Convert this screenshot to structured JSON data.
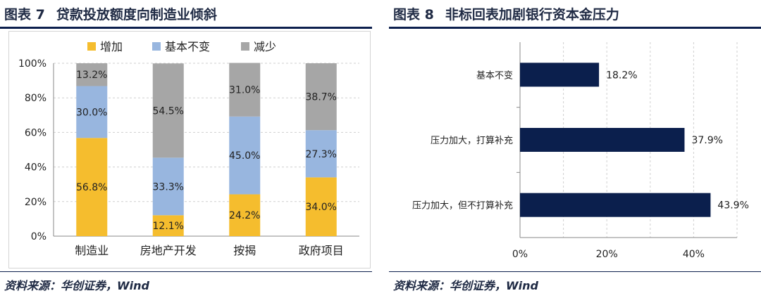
{
  "chart7": {
    "label": "图表 7",
    "title": "贷款投放额度向制造业倾斜",
    "source": "资料来源：华创证券，Wind",
    "colors": {
      "增加": "#f5bd2e",
      "基本不变": "#98b6df",
      "减少": "#a6a6a6"
    }
  },
  "chart8": {
    "label": "图表 8",
    "title": "非标回表加剧银行资本金压力",
    "source": "资料来源：华创证券，Wind",
    "color": "#0b1f4d"
  },
  "chart_data": [
    {
      "type": "bar",
      "stacked": true,
      "title": "贷款投放额度向制造业倾斜",
      "categories": [
        "制造业",
        "房地产开发",
        "按揭",
        "政府项目"
      ],
      "series": [
        {
          "name": "增加",
          "values": [
            56.8,
            12.1,
            24.2,
            34.0
          ],
          "labels": [
            "56.8%",
            "12.1%",
            "24.2%",
            "34.0%"
          ]
        },
        {
          "name": "基本不变",
          "values": [
            30.0,
            33.3,
            45.0,
            27.3
          ],
          "labels": [
            "30.0%",
            "33.3%",
            "45.0%",
            "27.3%"
          ]
        },
        {
          "name": "减少",
          "values": [
            13.2,
            54.5,
            31.0,
            38.7
          ],
          "labels": [
            "13.2%",
            "54.5%",
            "31.0%",
            "38.7%"
          ]
        }
      ],
      "ylim": [
        0,
        100
      ],
      "yticks": [
        "0%",
        "20%",
        "40%",
        "60%",
        "80%",
        "100%"
      ],
      "legend": "top",
      "grid": true
    },
    {
      "type": "bar",
      "orientation": "horizontal",
      "title": "非标回表加剧银行资本金压力",
      "categories": [
        "基本不变",
        "压力加大，打算补充",
        "压力加大，但不打算补充"
      ],
      "values": [
        18.2,
        37.9,
        43.9
      ],
      "labels": [
        "18.2%",
        "37.9%",
        "43.9%"
      ],
      "xlim": [
        0,
        50
      ],
      "xticks": [
        "0%",
        "20%",
        "40%"
      ],
      "grid": true
    }
  ]
}
